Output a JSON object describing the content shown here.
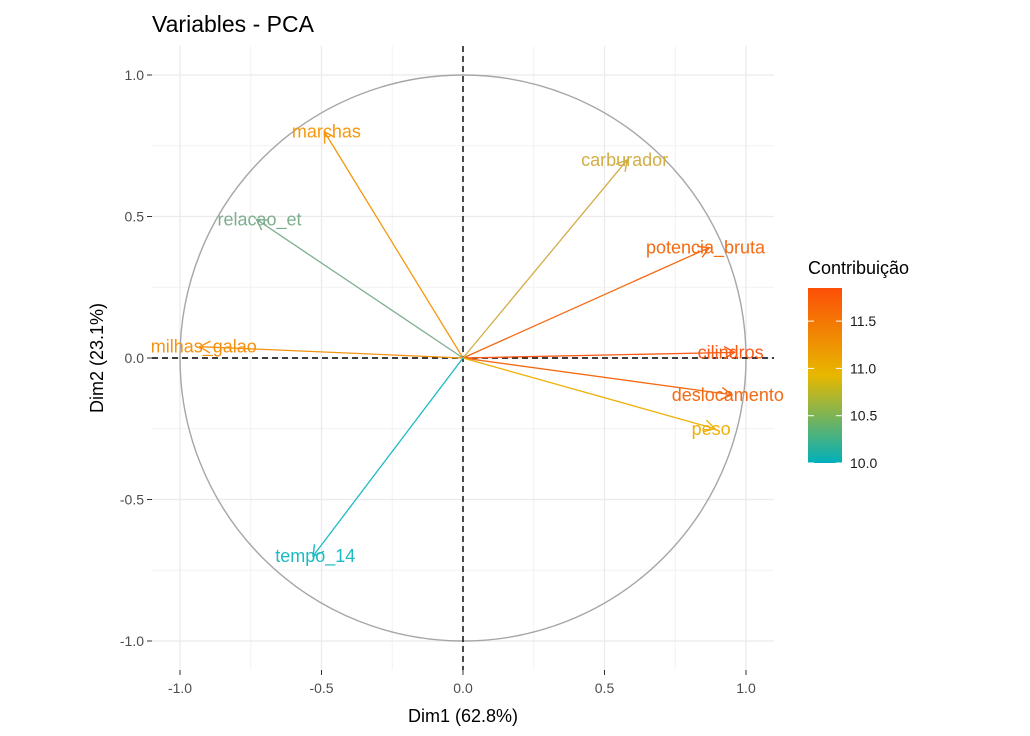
{
  "chart_data": {
    "type": "scatter",
    "subtype": "pca-variable-correlation-circle",
    "title": "Variables - PCA",
    "xlabel": "Dim1 (62.8%)",
    "ylabel": "Dim2 (23.1%)",
    "xlim": [
      -1.0,
      1.0
    ],
    "ylim": [
      -1.0,
      1.0
    ],
    "xticks": [
      -1.0,
      -0.5,
      0.0,
      0.5,
      1.0
    ],
    "yticks": [
      -1.0,
      -0.5,
      0.0,
      0.5,
      1.0
    ],
    "xtick_labels": [
      "-1.0",
      "-0.5",
      "0.0",
      "0.5",
      "1.0"
    ],
    "ytick_labels": [
      "-1.0",
      "-0.5",
      "0.0",
      "0.5",
      "1.0"
    ],
    "grid": true,
    "unit_circle": true,
    "reference_lines": [
      "x=0",
      "y=0"
    ],
    "variables": [
      {
        "name": "cilindros",
        "x": 0.96,
        "y": 0.02,
        "contrib": 11.8,
        "color": "#fc5a15"
      },
      {
        "name": "deslocamento",
        "x": 0.95,
        "y": -0.13,
        "contrib": 11.6,
        "color": "#f36a13"
      },
      {
        "name": "potencia_bruta",
        "x": 0.87,
        "y": 0.39,
        "contrib": 11.5,
        "color": "#f56b14"
      },
      {
        "name": "peso",
        "x": 0.89,
        "y": -0.25,
        "contrib": 11.0,
        "color": "#efb108"
      },
      {
        "name": "carburador",
        "x": 0.58,
        "y": 0.7,
        "contrib": 10.7,
        "color": "#d2ad45"
      },
      {
        "name": "marchas",
        "x": -0.49,
        "y": 0.8,
        "contrib": 11.2,
        "color": "#f5980f"
      },
      {
        "name": "relacao_et",
        "x": -0.73,
        "y": 0.49,
        "contrib": 10.4,
        "color": "#7fae8f"
      },
      {
        "name": "milhas_galao",
        "x": -0.93,
        "y": 0.04,
        "contrib": 11.3,
        "color": "#f5920f"
      },
      {
        "name": "tempo_14",
        "x": -0.53,
        "y": -0.7,
        "contrib": 10.0,
        "color": "#1dbac3"
      }
    ],
    "legend": {
      "title": "Contribuição",
      "position": "right",
      "min": 10.0,
      "max": 11.85,
      "ticks": [
        10.0,
        10.5,
        11.0,
        11.5
      ],
      "tick_labels": [
        "10.0",
        "10.5",
        "11.0",
        "11.5"
      ],
      "gradient": [
        "#00afbb",
        "#e7b800",
        "#fc4e07"
      ]
    }
  }
}
